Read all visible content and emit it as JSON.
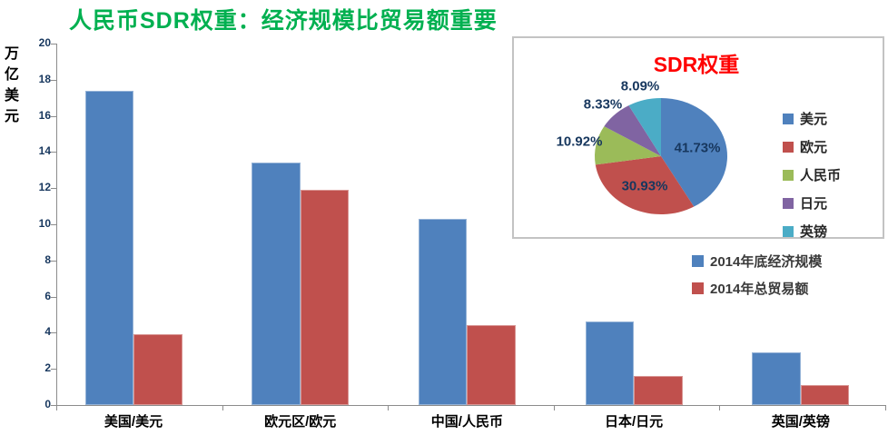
{
  "colors": {
    "title_green": "#00B050",
    "inset_title_red": "#FF0000",
    "axis_text_navy": "#17375E",
    "category_text": "#000000",
    "axis_line_gray": "#8C8C8C",
    "inset_border_gray": "#C3C3C3",
    "series_blue": "#4F81BD",
    "series_red": "#C0504D",
    "pie_green": "#9BBB59",
    "pie_purple": "#8064A2",
    "pie_teal": "#4BACC6"
  },
  "chart_data": [
    {
      "type": "bar",
      "title": "人民币SDR权重：经济规模比贸易额重要",
      "ylabel": "万亿美元",
      "xlabel": "",
      "ylim": [
        0,
        20
      ],
      "yticks": [
        0,
        2,
        4,
        6,
        8,
        10,
        12,
        14,
        16,
        18,
        20
      ],
      "grid": false,
      "legend_position": "right-middle",
      "categories": [
        "美国/美元",
        "欧元区/欧元",
        "中国/人民币",
        "日本/日元",
        "英国/英镑"
      ],
      "series": [
        {
          "name": "2014年底经济规模",
          "color": "#4F81BD",
          "border": "#95B3D7",
          "values": [
            17.4,
            13.4,
            10.3,
            4.6,
            2.9
          ]
        },
        {
          "name": "2014年总贸易额",
          "color": "#C0504D",
          "border": "#D99694",
          "values": [
            3.9,
            11.9,
            4.4,
            1.6,
            1.1
          ]
        }
      ]
    },
    {
      "type": "pie",
      "title": "SDR权重",
      "legend_position": "right",
      "labels": [
        "美元",
        "欧元",
        "人民币",
        "日元",
        "英镑"
      ],
      "values": [
        41.73,
        30.93,
        10.92,
        8.33,
        8.09
      ],
      "value_labels": [
        "41.73%",
        "30.93%",
        "10.92%",
        "8.33%",
        "8.09%"
      ],
      "colors": [
        "#4F81BD",
        "#C0504D",
        "#9BBB59",
        "#8064A2",
        "#4BACC6"
      ]
    }
  ]
}
